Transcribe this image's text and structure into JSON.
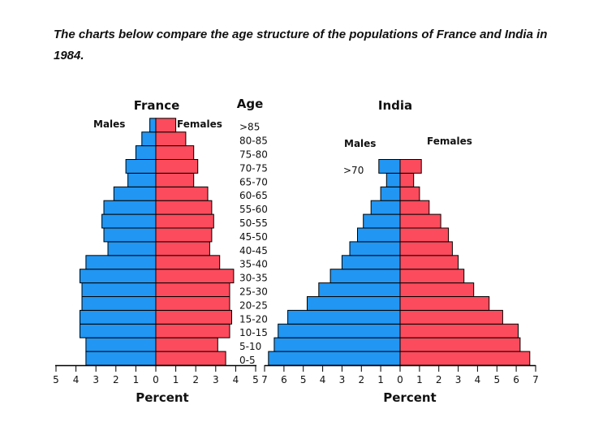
{
  "heading": "The charts below compare the age structure of the populations of France and India in 1984.",
  "colors": {
    "males": "#2196f3",
    "females": "#fc4b5c",
    "outline": "#000000"
  },
  "chart_data": [
    {
      "type": "bar",
      "orientation": "population-pyramid",
      "title": "France",
      "age_header": "Age",
      "males_label": "Males",
      "females_label": "Females",
      "xlabel": "Percent",
      "xlim": [
        -5,
        5
      ],
      "x_ticks": [
        "5",
        "4",
        "3",
        "2",
        "1",
        "0",
        "1",
        "2",
        "3",
        "4",
        "5"
      ],
      "categories": [
        "0-5",
        "5-10",
        "10-15",
        "15-20",
        "20-25",
        "25-30",
        "30-35",
        "35-40",
        "40-45",
        "45-50",
        "50-55",
        "55-60",
        "60-65",
        "65-70",
        "70-75",
        "75-80",
        "80-85",
        ">85"
      ],
      "series": [
        {
          "name": "Males",
          "values": [
            3.5,
            3.5,
            3.8,
            3.8,
            3.7,
            3.7,
            3.8,
            3.5,
            2.4,
            2.6,
            2.7,
            2.6,
            2.1,
            1.4,
            1.5,
            1.0,
            0.7,
            0.3
          ]
        },
        {
          "name": "Females",
          "values": [
            3.5,
            3.1,
            3.7,
            3.8,
            3.7,
            3.7,
            3.9,
            3.2,
            2.7,
            2.8,
            2.9,
            2.8,
            2.6,
            1.9,
            2.1,
            1.9,
            1.5,
            1.0
          ]
        }
      ]
    },
    {
      "type": "bar",
      "orientation": "population-pyramid",
      "title": "India",
      "males_label": "Males",
      "females_label": "Females",
      "top_age_label": ">70",
      "xlabel": "Percent",
      "xlim": [
        -7,
        7
      ],
      "x_ticks": [
        "7",
        "6",
        "5",
        "4",
        "3",
        "2",
        "1",
        "0",
        "1",
        "2",
        "3",
        "4",
        "5",
        "6",
        "7"
      ],
      "series": [
        {
          "name": "Males",
          "values": [
            6.8,
            6.5,
            6.3,
            5.8,
            4.8,
            4.2,
            3.6,
            3.0,
            2.6,
            2.2,
            1.9,
            1.5,
            1.0,
            0.7,
            1.1
          ]
        },
        {
          "name": "Females",
          "values": [
            6.7,
            6.2,
            6.1,
            5.3,
            4.6,
            3.8,
            3.3,
            3.0,
            2.7,
            2.5,
            2.1,
            1.5,
            1.0,
            0.7,
            1.1
          ]
        }
      ]
    }
  ]
}
